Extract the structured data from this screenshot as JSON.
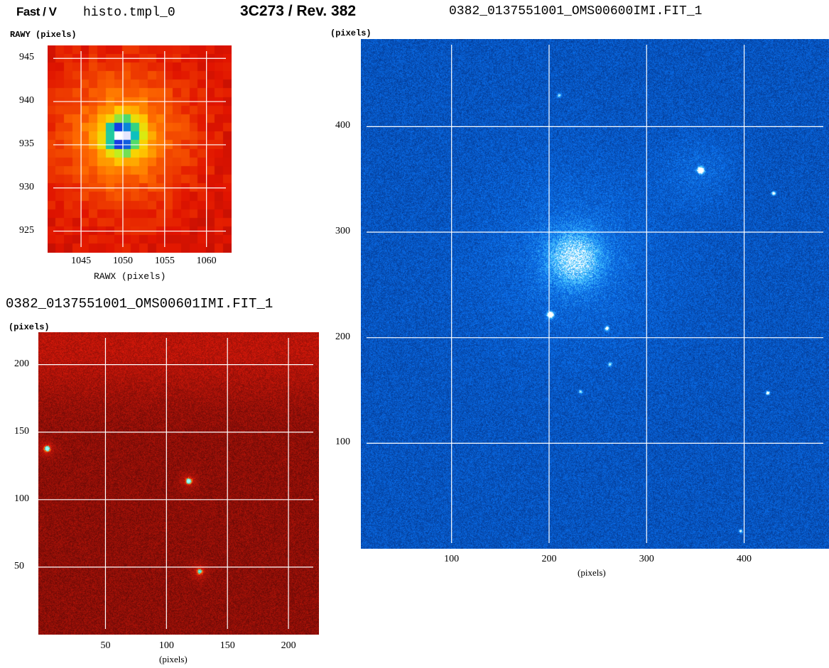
{
  "header": {
    "mode": "Fast / V",
    "hist_name": "histo.tmpl_0",
    "target_rev": "3C273 / Rev. 382",
    "file_large": "0382_0137551001_OMS00600IMI.FIT_1",
    "file_small": "0382_0137551001_OMS00601IMI.FIT_1"
  },
  "panel_fast": {
    "ylabel": "RAWY (pixels)",
    "xlabel": "RAWX (pixels)",
    "xticks": [
      "1045",
      "1050",
      "1055",
      "1060"
    ],
    "yticks": [
      "945",
      "940",
      "935",
      "930",
      "925"
    ],
    "colormap": "rainbow",
    "source_x": 1050,
    "source_y": 936
  },
  "panel_small": {
    "ylabel": "(pixels)",
    "xlabel": "(pixels)",
    "xticks": [
      "50",
      "100",
      "150",
      "200"
    ],
    "yticks": [
      "200",
      "150",
      "100",
      "50"
    ],
    "colormap": "red",
    "sources": [
      {
        "x": 2,
        "y": 138
      },
      {
        "x": 118,
        "y": 114
      },
      {
        "x": 127,
        "y": 47
      }
    ]
  },
  "panel_large": {
    "ylabel": "(pixels)",
    "xlabel": "(pixels)",
    "xticks": [
      "100",
      "200",
      "300",
      "400"
    ],
    "yticks": [
      "400",
      "300",
      "200",
      "100"
    ],
    "colormap": "blue",
    "nucleus": {
      "x": 226,
      "y": 275
    },
    "sources": [
      {
        "x": 355,
        "y": 359
      },
      {
        "x": 201,
        "y": 222
      },
      {
        "x": 259,
        "y": 209
      },
      {
        "x": 430,
        "y": 337
      },
      {
        "x": 424,
        "y": 148
      },
      {
        "x": 396,
        "y": 17
      },
      {
        "x": 262,
        "y": 175
      },
      {
        "x": 232,
        "y": 149
      },
      {
        "x": 210,
        "y": 430
      }
    ]
  }
}
